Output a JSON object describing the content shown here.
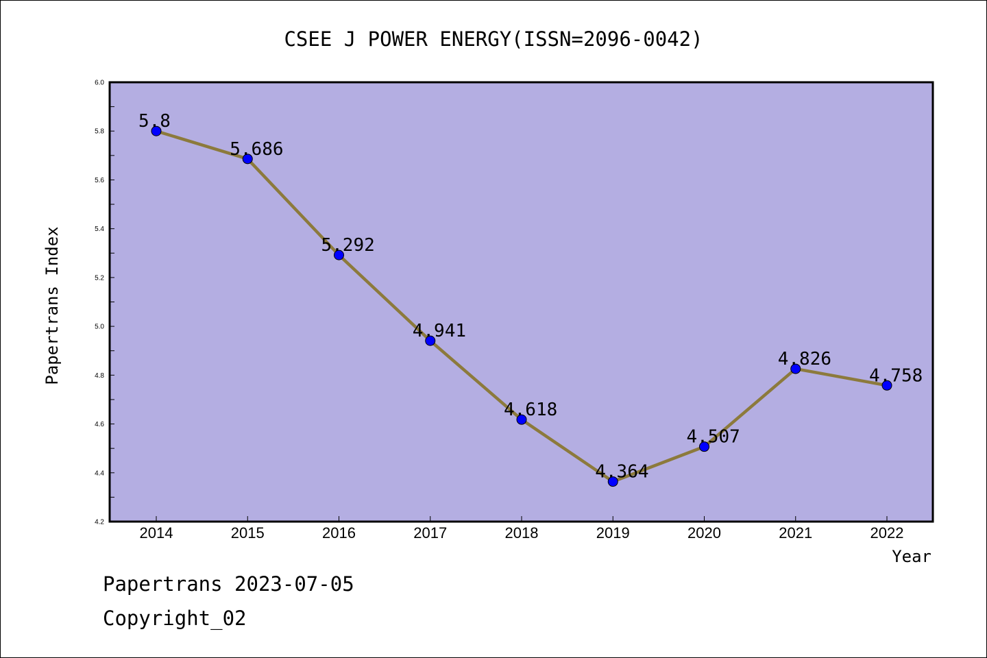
{
  "chart_data": {
    "type": "line",
    "title": "CSEE J POWER ENERGY(ISSN=2096-0042)",
    "xlabel": "Year",
    "ylabel": "Papertrans Index",
    "categories": [
      "2014",
      "2015",
      "2016",
      "2017",
      "2018",
      "2019",
      "2020",
      "2021",
      "2022"
    ],
    "series": [
      {
        "values": [
          5.8,
          5.686,
          5.292,
          4.941,
          4.618,
          4.364,
          4.507,
          4.826,
          4.758
        ],
        "labels": [
          "5.8",
          "5.686",
          "5.292",
          "4.941",
          "4.618",
          "4.364",
          "4.507",
          "4.826",
          "4.758"
        ]
      }
    ],
    "ylim": [
      4.2,
      6.0
    ],
    "yticks": [
      "4.2",
      "4.4",
      "4.6",
      "4.8",
      "5.0",
      "5.2",
      "5.4",
      "5.6",
      "5.8",
      "6.0"
    ],
    "grid": false,
    "colors": {
      "plot_background": "#b4aee2",
      "line": "#8c7a3c",
      "marker": "#0000ff"
    }
  },
  "footer": {
    "line1": "Papertrans 2023-07-05",
    "line2": "Copyright_02"
  }
}
